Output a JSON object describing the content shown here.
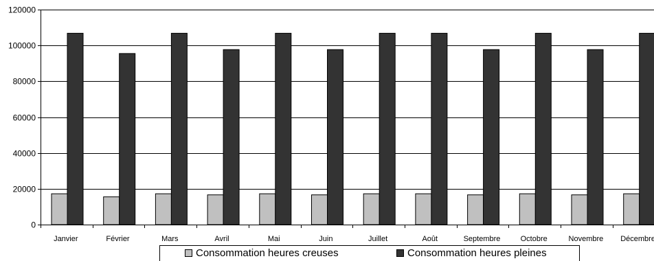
{
  "chart_data": {
    "type": "bar",
    "categories": [
      "Janvier",
      "Février",
      "Mars",
      "Avril",
      "Mai",
      "Juin",
      "Juillet",
      "Août",
      "Septembre",
      "Octobre",
      "Novembre",
      "Décembre"
    ],
    "series": [
      {
        "name": "Consommation heures creuses",
        "color": "#c0c0c0",
        "values": [
          17200,
          15500,
          17200,
          16600,
          17200,
          16600,
          17200,
          17200,
          16600,
          17200,
          16600,
          17200
        ]
      },
      {
        "name": "Consommation heures pleines",
        "color": "#333333",
        "values": [
          106800,
          95500,
          106800,
          97700,
          106800,
          97700,
          106800,
          106800,
          97700,
          106800,
          97700,
          106800
        ]
      }
    ],
    "ylim": [
      0,
      120000
    ],
    "yticks": [
      0,
      20000,
      40000,
      60000,
      80000,
      100000,
      120000
    ],
    "grid": true,
    "legend_position": "bottom"
  }
}
